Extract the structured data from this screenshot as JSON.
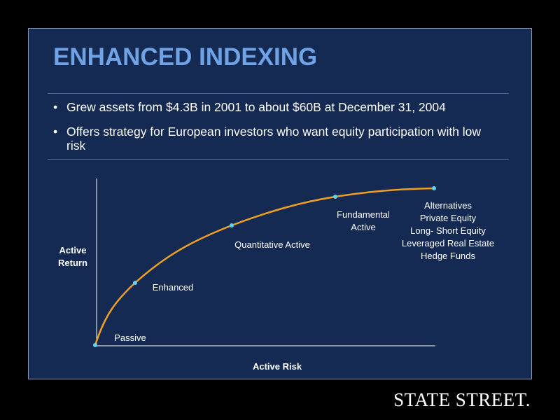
{
  "title": "ENHANCED INDEXING",
  "bullets": [
    "Grew assets from $4.3B in 2001 to about $60B at December 31, 2004",
    "Offers strategy for European investors who want equity participation with low risk"
  ],
  "diagram": {
    "y_axis_label": [
      "Active",
      "Return"
    ],
    "x_axis_label": "Active Risk",
    "points": [
      {
        "label": [
          "Passive"
        ]
      },
      {
        "label": [
          "Enhanced"
        ]
      },
      {
        "label": [
          "Quantitative Active"
        ]
      },
      {
        "label": [
          "Fundamental",
          "Active"
        ]
      },
      {
        "label": [
          "Alternatives",
          "Private Equity",
          "Long- Short Equity",
          "Leveraged Real Estate",
          "Hedge Funds"
        ]
      }
    ]
  },
  "logo": "STATE STREET."
}
